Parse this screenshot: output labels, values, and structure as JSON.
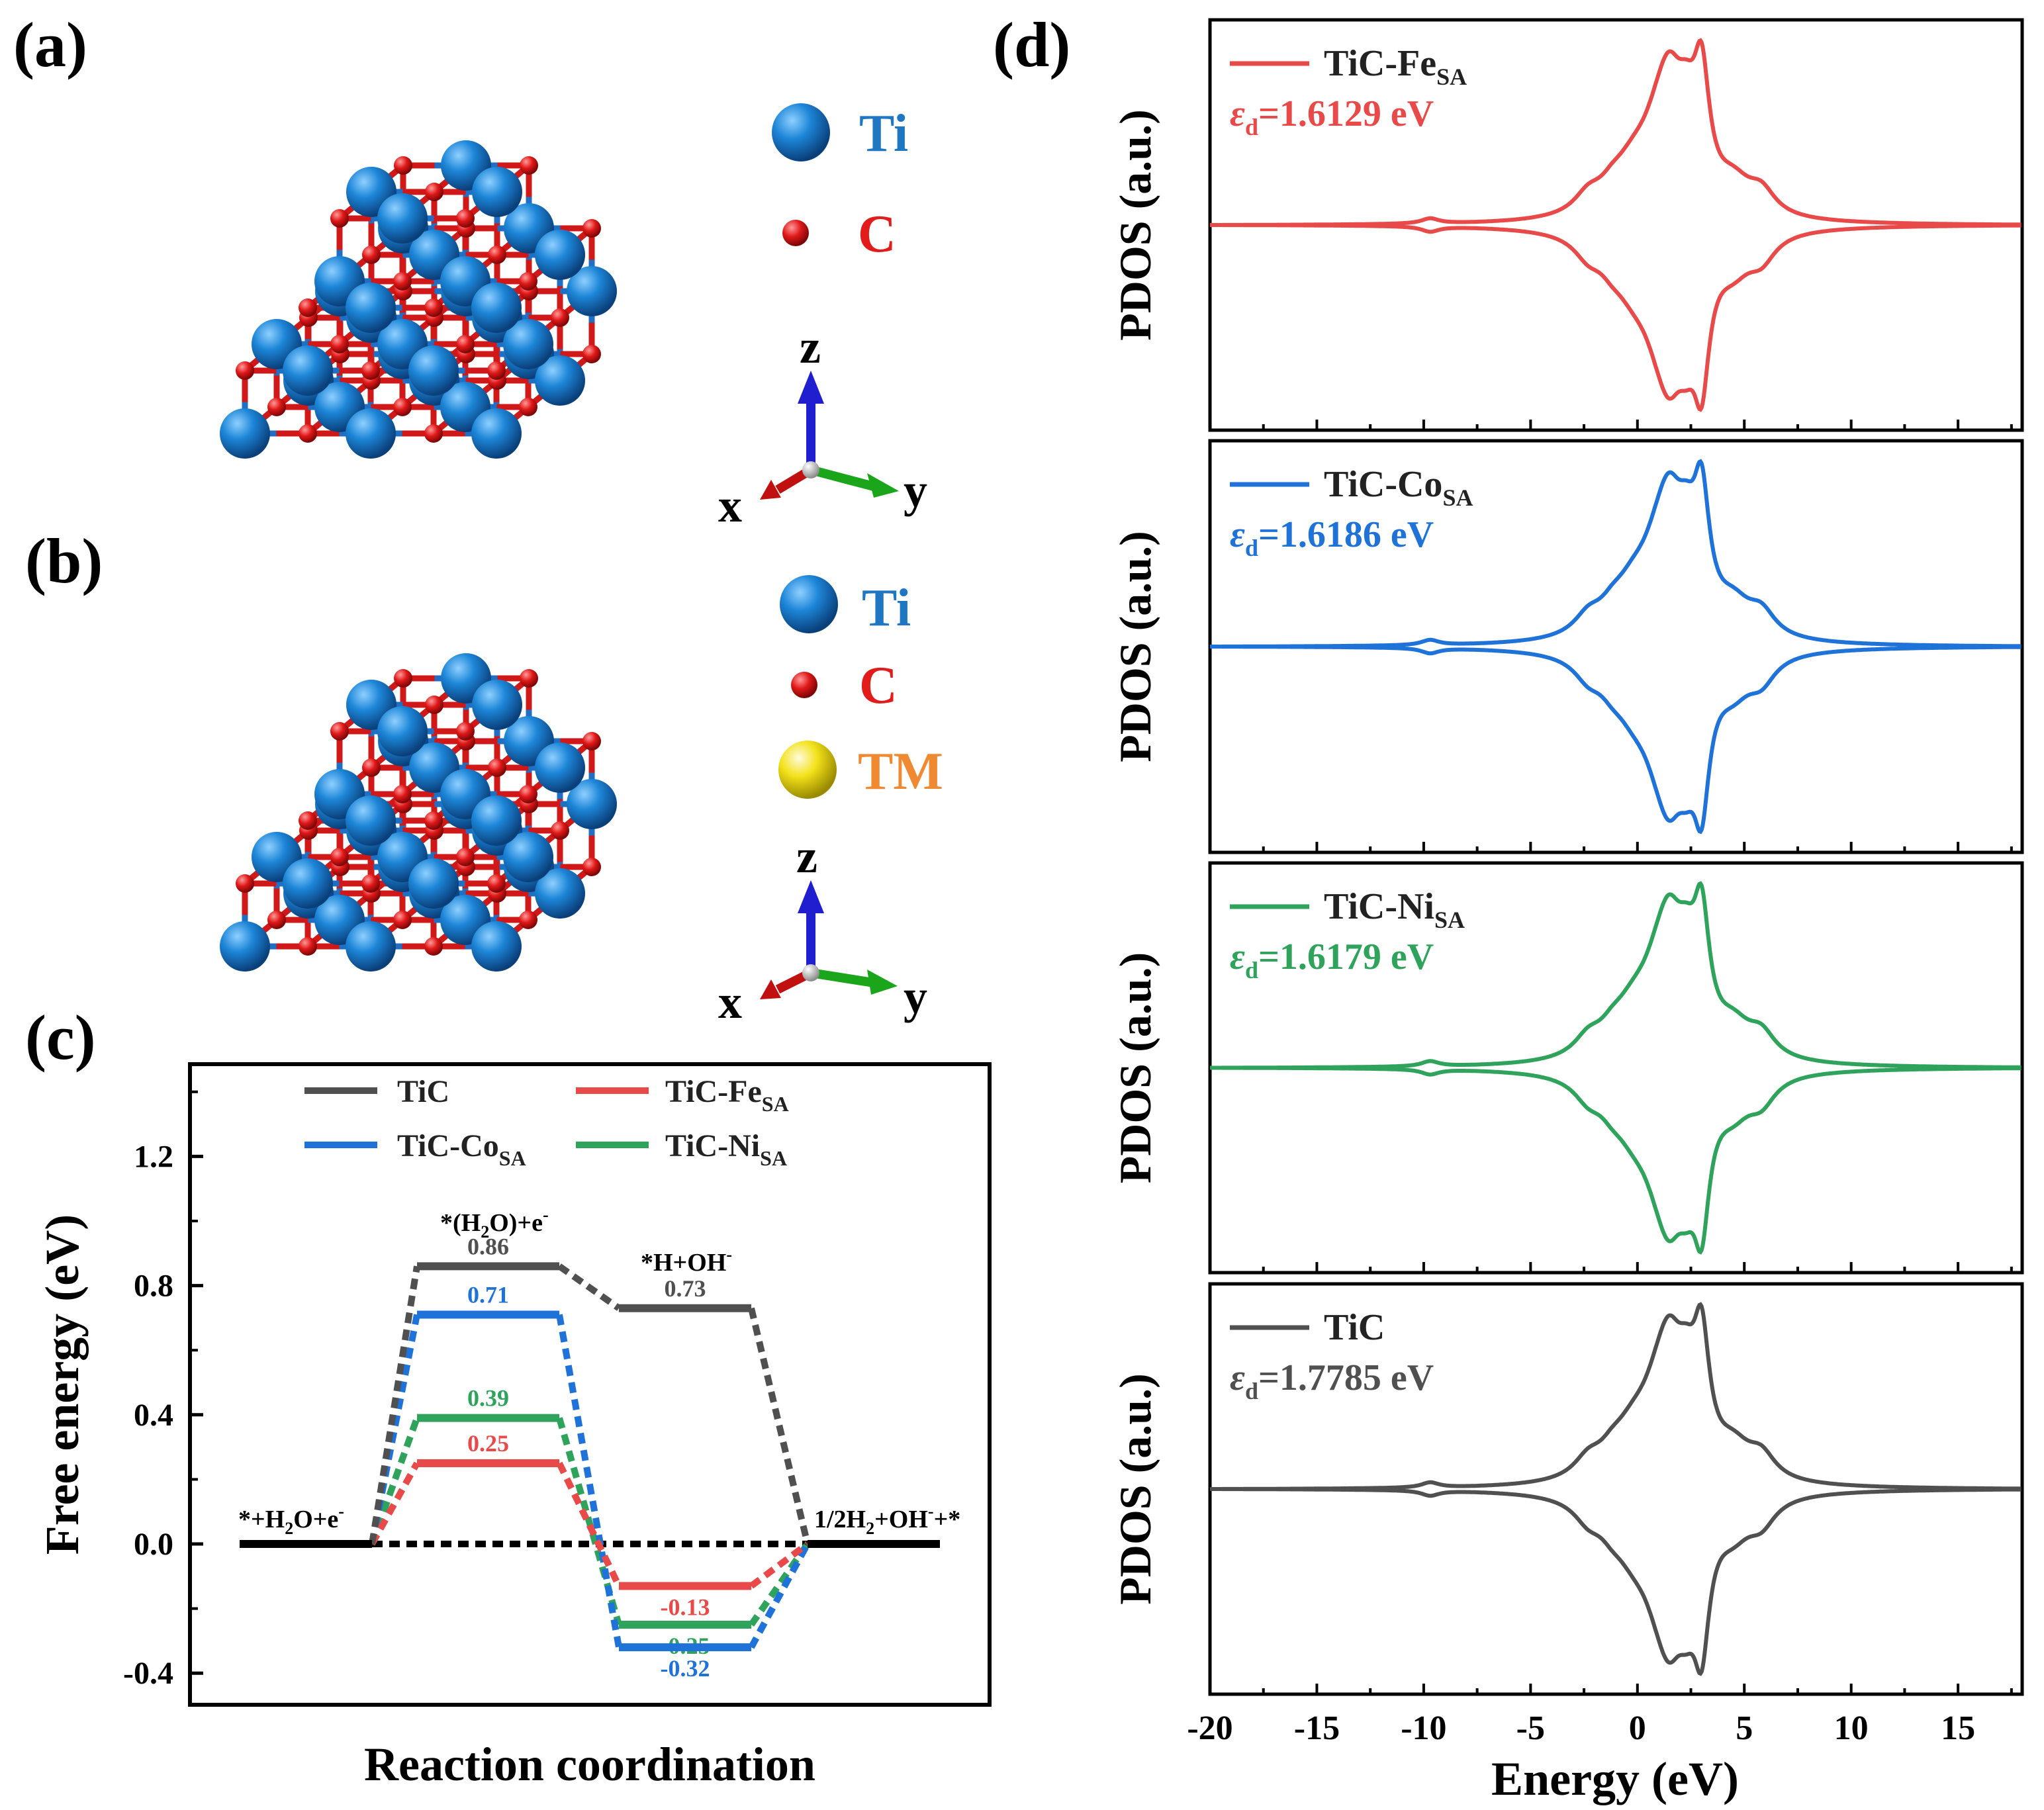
{
  "panels": {
    "a": {
      "letter": "(a)"
    },
    "b": {
      "letter": "(b)"
    },
    "c": {
      "letter": "(c)"
    },
    "d": {
      "letter": "(d)"
    }
  },
  "structure_a": {
    "legend": [
      {
        "label": "Ti",
        "color": "#1f77c4"
      },
      {
        "label": "C",
        "color": "#e21b1b"
      }
    ],
    "axes": {
      "z": "z",
      "x": "x",
      "y": "y"
    }
  },
  "structure_b": {
    "legend": [
      {
        "label": "Ti",
        "color": "#1f77c4"
      },
      {
        "label": "C",
        "color": "#e21b1b"
      },
      {
        "label": "TM",
        "color": "#f08a32"
      }
    ],
    "axes": {
      "z": "z",
      "x": "x",
      "y": "y"
    }
  },
  "chart_data": [
    {
      "type": "line",
      "panel": "c",
      "title": "",
      "xlabel": "Reaction coordination",
      "ylabel": "Free energy (eV)",
      "ylim": [
        -0.52,
        1.52
      ],
      "yticks": [
        -0.4,
        0.0,
        0.4,
        0.8,
        1.2
      ],
      "ytick_labels": [
        "-0.4",
        "0.0",
        "0.4",
        "0.8",
        "1.2"
      ],
      "states": [
        "*+H2O+e-",
        "*(H2O)+e-",
        "*H+OH-",
        "1/2H2+OH-+*"
      ],
      "state_labels": {
        "initial": {
          "a": "*+H",
          "sub1": "2",
          "b": "O+e",
          "sup1": "-"
        },
        "adsorbed": {
          "a": "*(H",
          "sub1": "2",
          "b": "O)+e",
          "sup1": "-"
        },
        "hoh": {
          "a": "*H+OH",
          "sup1": "-"
        },
        "final": {
          "a": "1/2H",
          "sub1": "2",
          "b": "+OH",
          "sup1": "-",
          "c": "+*"
        }
      },
      "series": [
        {
          "name": "TiC",
          "color": "#505050",
          "values": [
            0,
            0.86,
            0.73,
            0
          ],
          "labels": [
            "0.86",
            "0.73"
          ]
        },
        {
          "name": "TiC-Fe_SA",
          "color": "#e84a4a",
          "values": [
            0,
            0.25,
            -0.13,
            0
          ],
          "labels": [
            "0.25",
            "-0.13"
          ]
        },
        {
          "name": "TiC-Co_SA",
          "color": "#1f72d8",
          "values": [
            0,
            0.71,
            -0.32,
            0
          ],
          "labels": [
            "0.71",
            "-0.32"
          ]
        },
        {
          "name": "TiC-Ni_SA",
          "color": "#2fa35c",
          "values": [
            0,
            0.39,
            -0.25,
            0
          ],
          "labels": [
            "0.39",
            "-0.25"
          ]
        }
      ],
      "legend": [
        {
          "main": "TiC",
          "sub": "",
          "color": "#505050"
        },
        {
          "main": "TiC-Fe",
          "sub": "SA",
          "color": "#e84a4a"
        },
        {
          "main": "TiC-Co",
          "sub": "SA",
          "color": "#1f72d8"
        },
        {
          "main": "TiC-Ni",
          "sub": "SA",
          "color": "#2fa35c"
        }
      ]
    },
    {
      "type": "line",
      "panel": "d",
      "xlabel": "Energy (eV)",
      "ylabel": "PDOS (a.u.)",
      "xlim": [
        -20,
        18
      ],
      "xticks": [
        -20,
        -15,
        -10,
        -5,
        0,
        5,
        10,
        15
      ],
      "xtick_labels": [
        "-20",
        "-15",
        "-10",
        "-5",
        "0",
        "5",
        "10",
        "15"
      ],
      "series": [
        {
          "name": "TiC-Fe",
          "sub": "SA",
          "color": "#e84a4a",
          "ed_label": "=1.6129 eV",
          "ed_value": 1.6129
        },
        {
          "name": "TiC-Co",
          "sub": "SA",
          "color": "#1f72d8",
          "ed_label": "=1.6186 eV",
          "ed_value": 1.6186
        },
        {
          "name": "TiC-Ni",
          "sub": "SA",
          "color": "#2fa35c",
          "ed_label": "=1.6179 eV",
          "ed_value": 1.6179
        },
        {
          "name": "TiC",
          "sub": "",
          "color": "#505050",
          "ed_label": "=1.7785 eV",
          "ed_value": 1.7785
        }
      ],
      "epsilon_symbol": "ε",
      "epsilon_sub": "d"
    }
  ]
}
